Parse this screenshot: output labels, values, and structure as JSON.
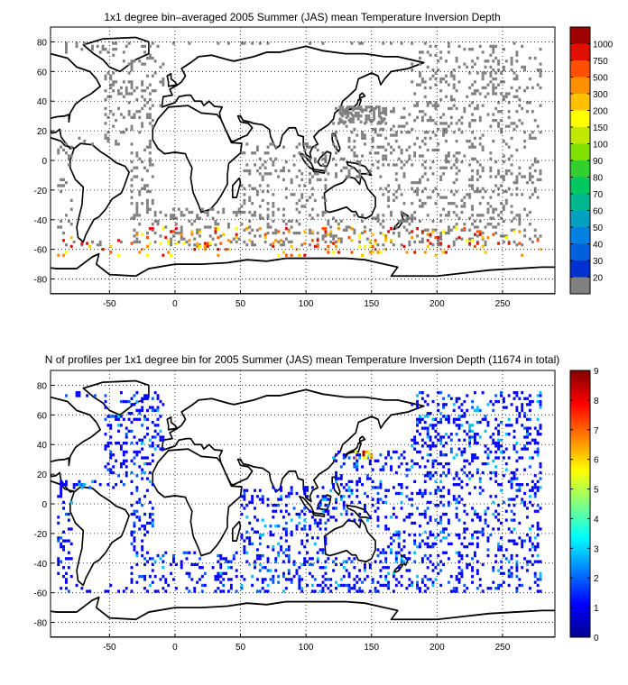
{
  "chart_data": [
    {
      "type": "heatmap",
      "title": "1x1 degree bin–averaged 2005 Summer (JAS) mean Temperature Inversion Depth",
      "xlim": [
        -95,
        290
      ],
      "ylim": [
        -90,
        90
      ],
      "xticks": [
        -50,
        0,
        50,
        100,
        150,
        200,
        250
      ],
      "yticks": [
        -80,
        -60,
        -40,
        -20,
        0,
        20,
        40,
        60,
        80
      ],
      "grid": true,
      "colorbar": {
        "labels": [
          "20",
          "30",
          "40",
          "50",
          "60",
          "70",
          "80",
          "90",
          "100",
          "150",
          "200",
          "300",
          "500",
          "750",
          "1000"
        ],
        "colors": [
          "#808080",
          "#0030d0",
          "#0060e0",
          "#0080e0",
          "#00a0c0",
          "#00b890",
          "#00c860",
          "#30d030",
          "#80e000",
          "#c0e800",
          "#ffff00",
          "#ffc000",
          "#ff9000",
          "#ff5000",
          "#e01000",
          "#a00000"
        ]
      },
      "data_regions": [
        {
          "lon": [
            -90,
            280
          ],
          "lat": [
            -58,
            80
          ],
          "level": "20",
          "density": 0.18
        },
        {
          "lon": [
            125,
            160
          ],
          "lat": [
            25,
            50
          ],
          "level": "20",
          "density": 0.55
        },
        {
          "lon": [
            -90,
            280
          ],
          "lat": [
            -65,
            -45
          ],
          "level": "200",
          "density": 0.1
        }
      ]
    },
    {
      "type": "heatmap",
      "title": "N of profiles per 1x1 degree bin for 2005 Summer (JAS) mean Temperature Inversion Depth  (11674 in total)",
      "xlim": [
        -95,
        290
      ],
      "ylim": [
        -90,
        90
      ],
      "xticks": [
        -50,
        0,
        50,
        100,
        150,
        200,
        250
      ],
      "yticks": [
        -80,
        -60,
        -40,
        -20,
        0,
        20,
        40,
        60,
        80
      ],
      "grid": true,
      "total_profiles": 11674,
      "colorbar": {
        "range": [
          0,
          9
        ],
        "ticks": [
          "0",
          "1",
          "2",
          "3",
          "4",
          "5",
          "6",
          "7",
          "8",
          "9"
        ]
      },
      "data_regions": [
        {
          "lon": [
            -90,
            280
          ],
          "lat": [
            -60,
            75
          ],
          "value": 1,
          "density": 0.22
        },
        {
          "lon": [
            135,
            150
          ],
          "lat": [
            30,
            45
          ],
          "value": 7,
          "density": 0.6
        }
      ]
    }
  ]
}
